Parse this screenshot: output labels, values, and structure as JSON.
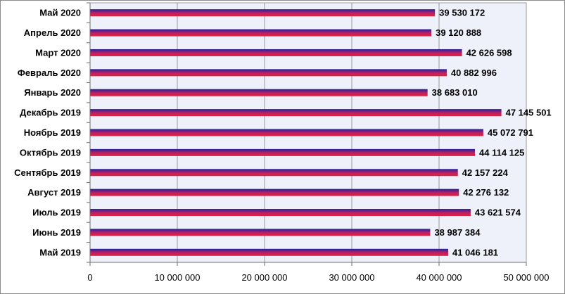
{
  "chart_data": {
    "type": "bar",
    "orientation": "horizontal",
    "title": "",
    "xlabel": "",
    "ylabel": "",
    "categories": [
      "Май 2020",
      "Апрель 2020",
      "Март 2020",
      "Февраль 2020",
      "Январь 2020",
      "Декабрь 2019",
      "Ноябрь 2019",
      "Октябрь 2019",
      "Сентябрь 2019",
      "Август 2019",
      "Июль 2019",
      "Июнь 2019",
      "Май 2019"
    ],
    "values": [
      39530172,
      39120888,
      42626598,
      40882996,
      38683010,
      47145501,
      45072791,
      44114125,
      42157224,
      42276132,
      43621574,
      38987384,
      41046181
    ],
    "value_labels": [
      "39 530 172",
      "39 120 888",
      "42 626 598",
      "40 882 996",
      "38 683 010",
      "47 145 501",
      "45 072 791",
      "44 114 125",
      "42 157 224",
      "42 276 132",
      "43 621 574",
      "38 987 384",
      "41 046 181"
    ],
    "xlim": [
      0,
      50000000
    ],
    "x_ticks": [
      0,
      10000000,
      20000000,
      30000000,
      40000000,
      50000000
    ],
    "x_tick_labels": [
      "0",
      "10 000 000",
      "20 000 000",
      "30 000 000",
      "40 000 000",
      "50 000 000"
    ],
    "grid": "vertical",
    "legend": "none",
    "bar_gradient": [
      "#2020a0",
      "#c02060",
      "#e02040"
    ],
    "plot_background": "#eef0fa"
  }
}
